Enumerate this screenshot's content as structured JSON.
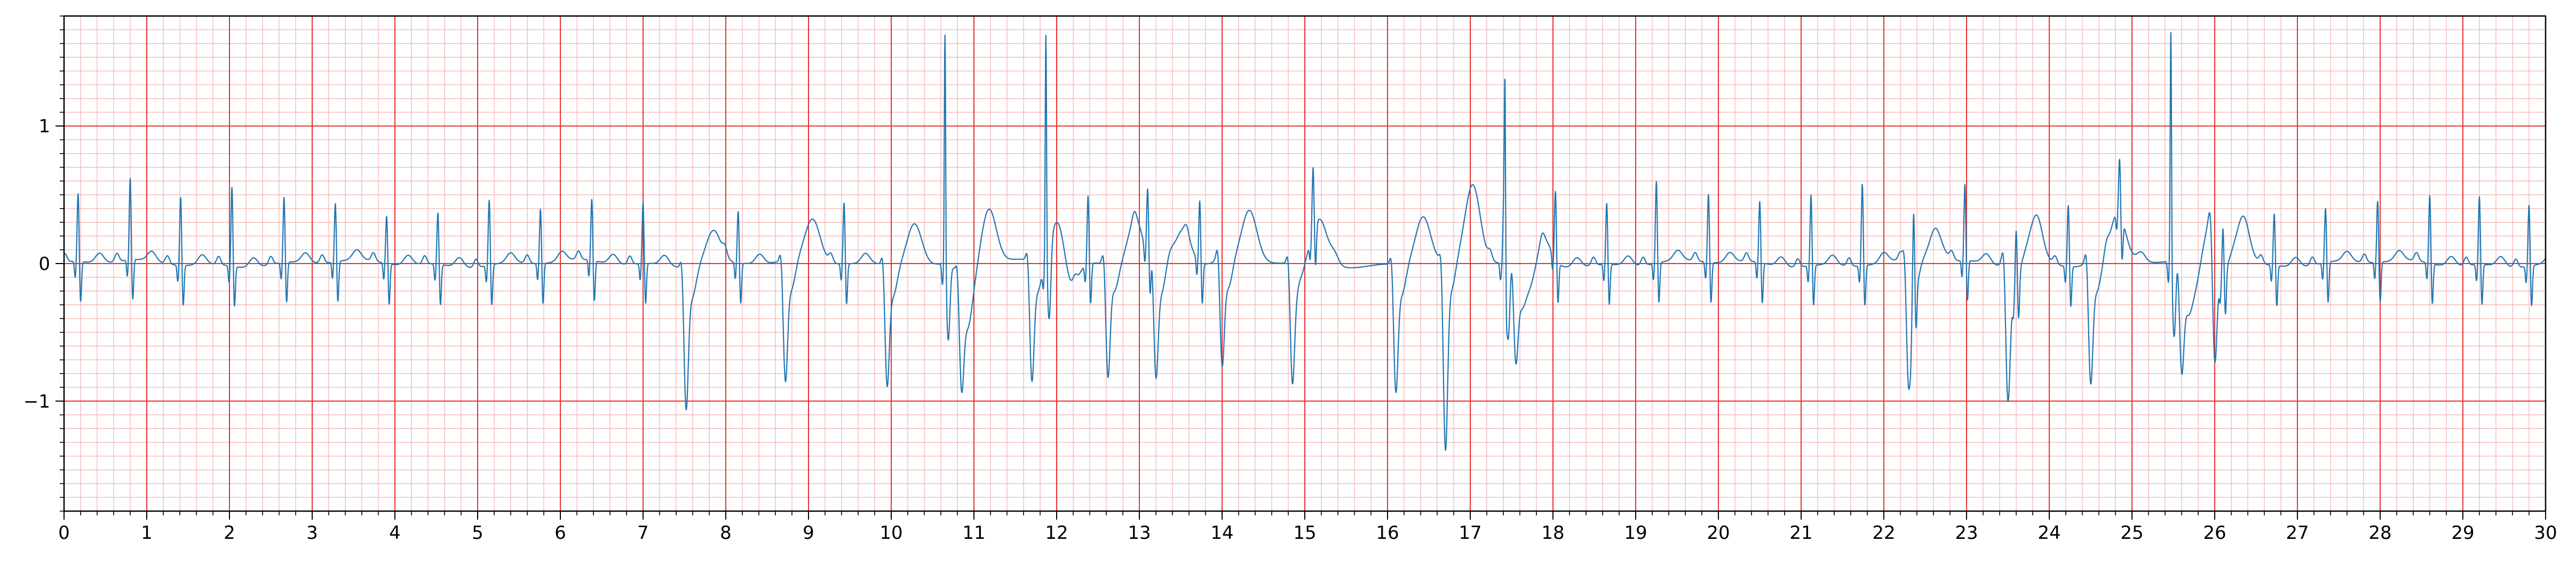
{
  "chart_data": {
    "type": "line",
    "title": "",
    "xlabel": "",
    "ylabel": "",
    "xlim": [
      0,
      30
    ],
    "ylim": [
      -1.8,
      1.8
    ],
    "xticks": [
      0,
      1,
      2,
      3,
      4,
      5,
      6,
      7,
      8,
      9,
      10,
      11,
      12,
      13,
      14,
      15,
      16,
      17,
      18,
      19,
      20,
      21,
      22,
      23,
      24,
      25,
      26,
      27,
      28,
      29,
      30
    ],
    "yticks": [
      -1,
      0,
      1
    ],
    "ytick_labels": [
      "−1",
      "0",
      "1"
    ],
    "grid": {
      "major_x_step": 1,
      "major_y_step": 1,
      "minor_x_step": 0.2,
      "minor_y_step": 0.1,
      "major_color": "#e8302f",
      "minor_color": "#f7b3b3"
    },
    "line_color": "#1f77b4",
    "beats": {
      "normal": {
        "times": [
          0.17,
          0.8,
          1.41,
          2.03,
          2.66,
          3.28,
          3.9,
          4.52,
          5.14,
          5.76,
          6.38,
          7.0,
          8.15,
          9.43,
          12.38,
          13.1,
          13.73,
          15.1,
          17.4,
          18.03,
          18.65,
          19.25,
          19.88,
          20.5,
          21.12,
          21.74,
          22.36,
          22.98,
          23.6,
          24.23,
          24.85,
          26.1,
          26.72,
          27.34,
          27.97,
          28.6,
          29.2,
          29.8
        ],
        "r_heights": [
          0.5,
          0.6,
          0.5,
          0.58,
          0.48,
          0.43,
          0.35,
          0.38,
          0.48,
          0.4,
          0.45,
          0.45,
          0.38,
          0.45,
          0.5,
          0.48,
          0.45,
          0.48,
          0.45,
          0.5,
          0.45,
          0.6,
          0.5,
          0.45,
          0.52,
          0.6,
          0.62,
          0.56,
          0.44,
          0.45,
          0.4,
          0.4,
          0.38,
          0.4,
          0.45,
          0.5,
          0.5,
          0.45
        ]
      },
      "ectopic": {
        "times": [
          7.52,
          8.72,
          9.95,
          10.85,
          11.7,
          12.62,
          13.2,
          14.0,
          14.85,
          16.1,
          16.7,
          17.55,
          22.3,
          23.5,
          24.5,
          25.6,
          26.0
        ],
        "depths": [
          0.95,
          0.8,
          0.8,
          0.68,
          0.8,
          0.8,
          0.75,
          0.75,
          0.8,
          0.85,
          1.3,
          0.6,
          0.85,
          0.9,
          0.85,
          0.68,
          0.84
        ],
        "t_heights": [
          0.25,
          0.3,
          0.32,
          0.4,
          0.38,
          0.35,
          0.25,
          0.36,
          0.32,
          0.35,
          0.55,
          0.2,
          0.18,
          0.3,
          0.35,
          0.3,
          0.3
        ]
      },
      "tall_spikes": {
        "times": [
          10.65,
          11.87,
          17.42,
          25.47
        ],
        "heights": [
          1.74,
          1.68,
          1.52,
          1.74
        ]
      }
    }
  }
}
